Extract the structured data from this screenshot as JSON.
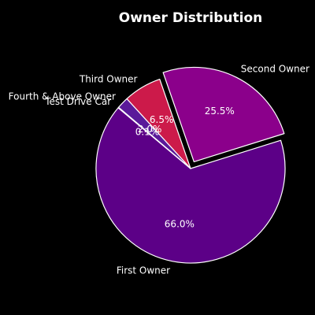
{
  "chart_data": {
    "type": "pie",
    "title": "Owner Distribution",
    "start_angle_deg": 140,
    "direction": "counterclockwise",
    "slices": [
      {
        "label": "First Owner",
        "value": 66.0,
        "pct_label": "66.0%",
        "color": "#5c0087",
        "explode": 0.0
      },
      {
        "label": "Second Owner",
        "value": 25.5,
        "pct_label": "25.5%",
        "color": "#8b008b",
        "explode": 0.08
      },
      {
        "label": "Third Owner",
        "value": 6.5,
        "pct_label": "6.5%",
        "color": "#cc1a4a",
        "explode": 0.0
      },
      {
        "label": "Fourth & Above Owner",
        "value": 2.0,
        "pct_label": "2.0%",
        "color": "#5a1a9a",
        "explode": 0.0
      },
      {
        "label": "Test Drive Car",
        "value": 0.1,
        "pct_label": "0.1%",
        "color": "#8a1a70",
        "explode": 0.0
      }
    ],
    "edge_color": "#ffffff",
    "background": "#000000"
  }
}
